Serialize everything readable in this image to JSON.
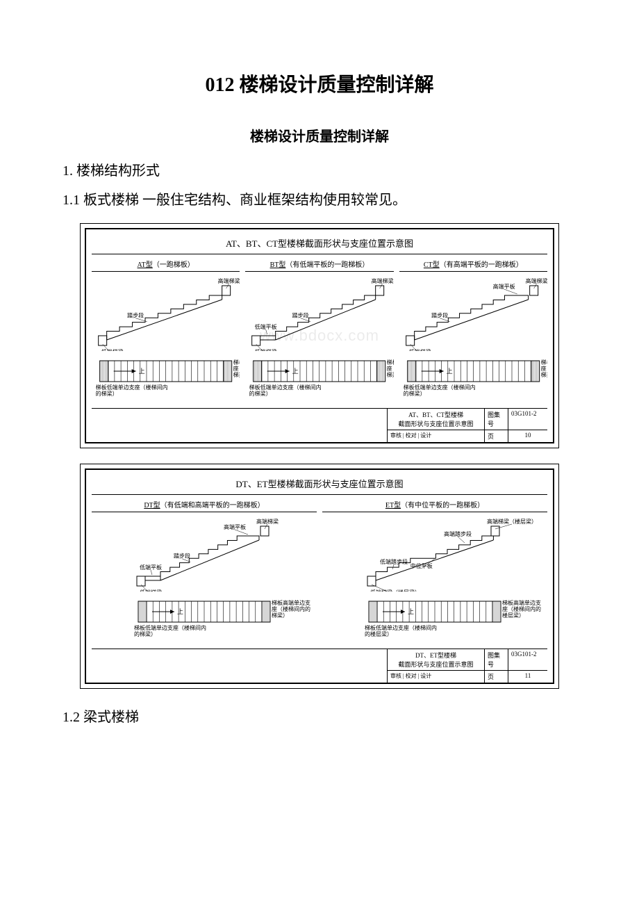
{
  "doc": {
    "main_title": "012 楼梯设计质量控制详解",
    "subtitle": "楼梯设计质量控制详解",
    "section_1": "1. 楼梯结构形式",
    "section_1_1": "1.1 板式楼梯 一般住宅结构、商业框架结构使用较常见。",
    "section_1_2": "1.2 梁式楼梯"
  },
  "diagram1": {
    "title": "AT、BT、CT型楼梯截面形状与支座位置示意图",
    "watermark": "www.bdocx.com",
    "panels": [
      {
        "type": "AT型",
        "desc": "（一跑梯板）",
        "labels": {
          "top_beam": "高端梯梁",
          "run": "踏步段",
          "low_beam": "低端梯梁",
          "plan_right": "梯板高端单边支座（楼梯间内的梯梁）",
          "plan_left": "梯板低端单边支座（楼梯间内的梯梁）",
          "mark": "上"
        }
      },
      {
        "type": "BT型",
        "desc": "（有低端平板的一跑梯板）",
        "labels": {
          "top_beam": "高端梯梁",
          "run": "踏步段",
          "low_plate": "低端平板",
          "low_beam": "低端梯梁",
          "plan_right": "梯板高端单边支座（楼梯间内的梯梁）",
          "plan_left": "梯板低端单边支座（楼梯间内的梯梁）",
          "mark": "上"
        }
      },
      {
        "type": "CT型",
        "desc": "（有高端平板的一跑梯板）",
        "labels": {
          "top_beam": "高端梯梁",
          "top_plate": "高端平板",
          "run": "踏步段",
          "low_beam": "低端梯梁",
          "plan_right": "梯板高端单边支座（楼梯间内的梯梁）",
          "plan_left": "梯板低端单边支座（楼梯间内的梯梁）",
          "mark": "上"
        }
      }
    ],
    "footer": {
      "caption_line1": "AT、BT、CT型楼梯",
      "caption_line2": "截面形状与支座位置示意图",
      "atlas_label": "图集号",
      "atlas_value": "03G101-2",
      "row2_a": "审核",
      "row2_b": "校对",
      "row2_c": "设计",
      "page_label": "页",
      "page_value": "10"
    }
  },
  "diagram2": {
    "title": "DT、ET型楼梯截面形状与支座位置示意图",
    "panels": [
      {
        "type": "DT型",
        "desc": "（有低端和高端平板的一跑梯板）",
        "labels": {
          "top_beam": "高端梯梁",
          "top_plate": "高端平板",
          "run": "踏步段",
          "low_plate": "低端平板",
          "low_beam": "低端梯梁",
          "plan_right": "梯板高端单边支座（楼梯间内的梯梁）",
          "plan_left": "梯板低端单边支座（楼梯间内的梯梁）",
          "mark": "上"
        }
      },
      {
        "type": "ET型",
        "desc": "（有中位平板的一跑梯板）",
        "labels": {
          "top_beam": "高端梯梁（楼层梁）",
          "top_run": "高端踏步段",
          "mid_plate": "中位平板",
          "low_run": "低端踏步段",
          "low_beam": "低端梯梁（楼层梁）",
          "plan_right": "梯板高端单边支座（楼梯间内的楼层梁）",
          "plan_left": "梯板低端单边支座（楼梯间内的楼层梁）",
          "mark": "上"
        }
      }
    ],
    "footer": {
      "caption_line1": "DT、ET型楼梯",
      "caption_line2": "截面形状与支座位置示意图",
      "atlas_label": "图集号",
      "atlas_value": "03G101-2",
      "row2_a": "审核",
      "row2_b": "校对",
      "row2_c": "设计",
      "page_label": "页",
      "page_value": "11"
    }
  },
  "style": {
    "line_color": "#000000",
    "hatch_color": "#777777",
    "stair_steps": 9,
    "plan_slats": 18
  }
}
